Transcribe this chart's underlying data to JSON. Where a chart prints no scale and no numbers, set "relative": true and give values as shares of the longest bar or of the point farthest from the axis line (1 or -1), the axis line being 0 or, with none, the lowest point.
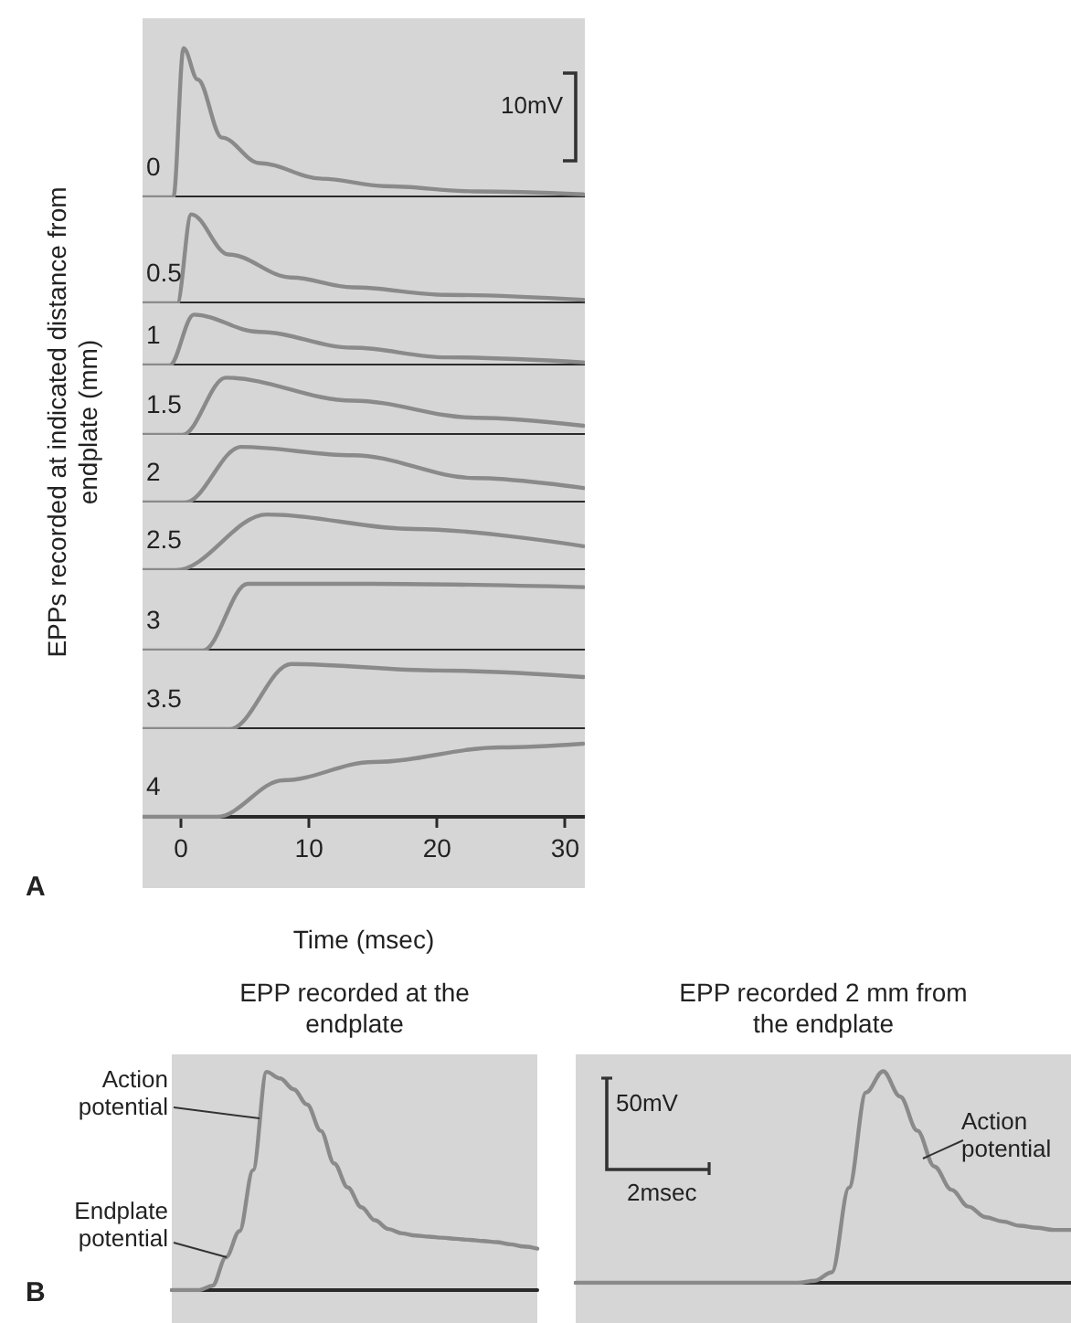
{
  "chart_data": [
    {
      "type": "line",
      "relative": true,
      "ylabel": "EPPs recorded at indicated distance from endplate (mm)",
      "annotations": [
        "10mV"
      ],
      "xlim": [
        -3,
        31.5
      ],
      "tick_labels": false,
      "series": [
        {
          "name": "0",
          "color": "#8a8a8a",
          "x": [
            -3,
            -0.6,
            0.2,
            1.3,
            3.2,
            6.1,
            11,
            15.9,
            23,
            31.4
          ],
          "values": [
            0,
            0,
            1,
            0.79,
            0.4,
            0.23,
            0.125,
            0.075,
            0.04,
            0.02
          ]
        }
      ]
    },
    {
      "type": "line",
      "relative": true,
      "xlim": [
        -3,
        31.5
      ],
      "tick_labels": false,
      "series": [
        {
          "name": "0.5",
          "color": "#8a8a8a",
          "x": [
            -3,
            -0.3,
            0.8,
            3.7,
            8.6,
            13.4,
            20.7,
            31.4
          ],
          "values": [
            0,
            0,
            1,
            0.55,
            0.29,
            0.18,
            0.095,
            0.04
          ]
        }
      ]
    },
    {
      "type": "line",
      "relative": true,
      "xlim": [
        -3,
        31.5
      ],
      "tick_labels": false,
      "series": [
        {
          "name": "1",
          "color": "#8a8a8a",
          "x": [
            -3,
            -0.9,
            1.0,
            6.1,
            13.4,
            20.7,
            31.4
          ],
          "values": [
            0,
            0,
            1,
            0.66,
            0.35,
            0.16,
            0.06
          ]
        }
      ]
    },
    {
      "type": "line",
      "relative": true,
      "xlim": [
        -3,
        31.5
      ],
      "tick_labels": false,
      "series": [
        {
          "name": "1.5",
          "color": "#8a8a8a",
          "x": [
            -3,
            0.1,
            3.5,
            13.4,
            23,
            31.4
          ],
          "values": [
            0,
            0,
            1,
            0.6,
            0.3,
            0.16
          ]
        }
      ]
    },
    {
      "type": "line",
      "relative": true,
      "xlim": [
        -3,
        31.5
      ],
      "tick_labels": false,
      "series": [
        {
          "name": "2",
          "color": "#8a8a8a",
          "x": [
            -3,
            0.3,
            4.7,
            13.4,
            23,
            31.4
          ],
          "values": [
            0,
            0,
            1,
            0.85,
            0.44,
            0.26
          ]
        }
      ]
    },
    {
      "type": "line",
      "relative": true,
      "xlim": [
        -3,
        31.5
      ],
      "tick_labels": false,
      "series": [
        {
          "name": "2.5",
          "color": "#8a8a8a",
          "x": [
            -3,
            -0.4,
            6.7,
            18.2,
            31.4
          ],
          "values": [
            0,
            0,
            1,
            0.74,
            0.43
          ]
        }
      ]
    },
    {
      "type": "line",
      "relative": true,
      "xlim": [
        -3,
        31.5
      ],
      "tick_labels": false,
      "series": [
        {
          "name": "3",
          "color": "#8a8a8a",
          "x": [
            -3,
            1.7,
            5.2,
            15,
            31.4
          ],
          "values": [
            0,
            0,
            1,
            1,
            0.95
          ]
        }
      ]
    },
    {
      "type": "line",
      "relative": true,
      "xlim": [
        -3,
        31.5
      ],
      "tick_labels": false,
      "series": [
        {
          "name": "3.5",
          "color": "#8a8a8a",
          "x": [
            -3,
            3.8,
            8.6,
            20,
            31.4
          ],
          "values": [
            0,
            0,
            1,
            0.9,
            0.8
          ]
        }
      ]
    },
    {
      "type": "line",
      "relative": true,
      "xlabel": "Time (msec)",
      "annotations": [
        "A"
      ],
      "xlim": [
        -3,
        31.5
      ],
      "xticks": [
        0,
        10,
        20,
        30
      ],
      "tick_labels": "x",
      "series": [
        {
          "name": "4",
          "color": "#8a8a8a",
          "x": [
            -3,
            2.8,
            8,
            15,
            25,
            31.4
          ],
          "values": [
            0,
            0,
            0.5,
            0.75,
            0.95,
            1
          ]
        }
      ]
    },
    {
      "type": "line",
      "relative": true,
      "title": "EPP recorded at the endplate",
      "annotations": [
        "B",
        "Action potential",
        "Endplate potential"
      ],
      "tick_labels": false,
      "categories": [
        null,
        null,
        null,
        null,
        null,
        null,
        null,
        null,
        null,
        null,
        null,
        null,
        null,
        null,
        null,
        null,
        null,
        null,
        null,
        null,
        null,
        null,
        null,
        null,
        null,
        null,
        null,
        null
      ],
      "series": [
        {
          "color": "#8a8a8a",
          "values": [
            0,
            0,
            0,
            0.02,
            0.15,
            0.27,
            0.55,
            1,
            0.97,
            0.92,
            0.85,
            0.73,
            0.58,
            0.47,
            0.38,
            0.32,
            0.28,
            0.26,
            0.25,
            0.245,
            0.24,
            0.235,
            0.23,
            0.225,
            0.22,
            0.21,
            0.2,
            0.19
          ]
        }
      ]
    },
    {
      "type": "line",
      "relative": true,
      "title": "EPP recorded 2 mm from the endplate",
      "annotations": [
        "Action potential",
        "50mV",
        "2msec"
      ],
      "tick_labels": false,
      "categories": [
        null,
        null,
        null,
        null,
        null,
        null,
        null,
        null,
        null,
        null,
        null,
        null,
        null,
        null,
        null,
        null,
        null,
        null,
        null,
        null,
        null,
        null,
        null,
        null,
        null,
        null,
        null,
        null,
        null,
        null
      ],
      "series": [
        {
          "color": "#8a8a8a",
          "values": [
            0,
            0,
            0,
            0,
            0,
            0,
            0,
            0,
            0,
            0,
            0,
            0,
            0,
            0,
            0.01,
            0.05,
            0.45,
            0.9,
            1,
            0.88,
            0.72,
            0.55,
            0.44,
            0.36,
            0.31,
            0.29,
            0.27,
            0.26,
            0.25,
            0.25
          ]
        }
      ]
    }
  ]
}
